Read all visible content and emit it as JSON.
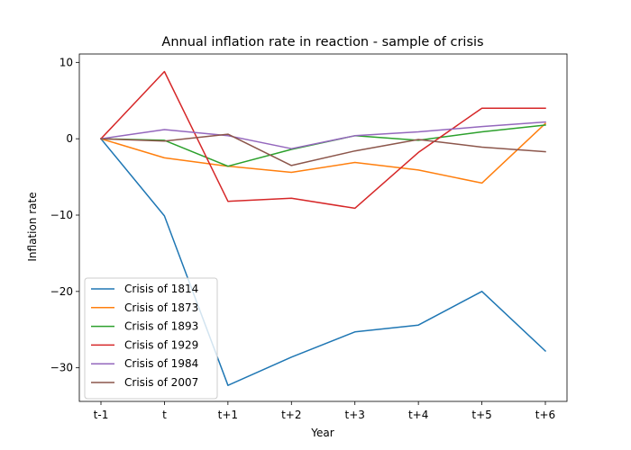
{
  "chart_data": {
    "type": "line",
    "title": "Annual inflation rate in reaction - sample of crisis",
    "xlabel": "Year",
    "ylabel": "Inflation rate",
    "categories": [
      "t-1",
      "t",
      "t+1",
      "t+2",
      "t+3",
      "t+4",
      "t+5",
      "t+6"
    ],
    "ylim": [
      -34.4,
      11.1
    ],
    "yticks": [
      10,
      0,
      -10,
      -20,
      -30
    ],
    "ytick_labels": [
      "10",
      "0",
      "−10",
      "−20",
      "−30"
    ],
    "grid": false,
    "legend_position": "lower-left",
    "series": [
      {
        "name": "Crisis of 1814",
        "color": "#1f77b4",
        "values": [
          0,
          -10.1,
          -32.3,
          -28.6,
          -25.3,
          -24.4,
          -20.0,
          -27.8
        ]
      },
      {
        "name": "Crisis of 1873",
        "color": "#ff7f0e",
        "values": [
          0,
          -2.5,
          -3.6,
          -4.4,
          -3.1,
          -4.1,
          -5.8,
          2.0
        ]
      },
      {
        "name": "Crisis of 1893",
        "color": "#2ca02c",
        "values": [
          0,
          -0.2,
          -3.6,
          -1.4,
          0.4,
          -0.2,
          0.9,
          1.8
        ]
      },
      {
        "name": "Crisis of 1929",
        "color": "#d62728",
        "values": [
          0,
          8.8,
          -8.2,
          -7.8,
          -9.1,
          -1.8,
          4.0,
          4.0
        ]
      },
      {
        "name": "Crisis of 1984",
        "color": "#9467bd",
        "values": [
          0,
          1.2,
          0.4,
          -1.3,
          0.4,
          0.9,
          1.6,
          2.2
        ]
      },
      {
        "name": "Crisis of 2007",
        "color": "#8c564b",
        "values": [
          0,
          -0.3,
          0.6,
          -3.5,
          -1.6,
          -0.1,
          -1.1,
          -1.7
        ]
      }
    ]
  }
}
